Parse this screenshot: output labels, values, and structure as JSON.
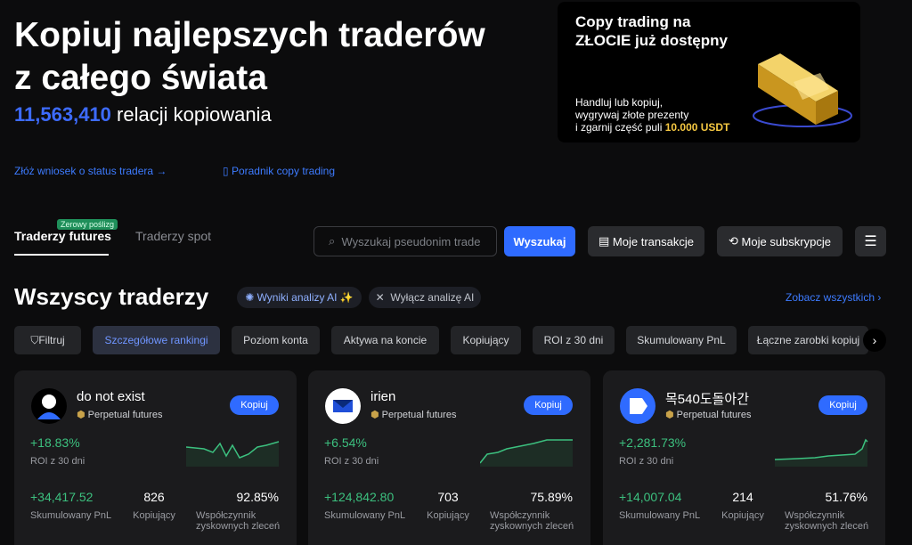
{
  "hero": {
    "title_line1": "Kopiuj najlepszych traderów",
    "title_line2": "z całego świata",
    "count": "11,563,410",
    "count_label": "relacji kopiowania"
  },
  "links": [
    "Złóż wniosek o status tradera",
    "Poradnik copy trading"
  ],
  "banner": {
    "title_line1": "Copy trading na",
    "title_line2": "ZŁOCIE już dostępny",
    "text_line1": "Handluj lub kopiuj,",
    "text_line2": "wygrywaj złote prezenty",
    "text_line3": "i zgarnij część puli",
    "highlight": "10.000 USDT"
  },
  "tabs": {
    "futures": "Traderzy futures",
    "badge": "Zerowy poślizg",
    "spot": "Traderzy spot"
  },
  "toolbar": {
    "search_placeholder": "Wyszukaj pseudonim trade",
    "search_button": "Wyszukaj",
    "my_trades": "Moje transakcje",
    "my_subscriptions": "Moje subskrypcje"
  },
  "section": {
    "title": "Wszyscy traderzy",
    "ai_results": "Wyniki analizy AI",
    "ai_off": "Wyłącz analizę AI",
    "see_all": "Zobacz wszystkich"
  },
  "filters": [
    "Filtruj",
    "Szczegółowe rankingi",
    "Poziom konta",
    "Aktywa na koncie",
    "Kopiujący",
    "ROI z 30 dni",
    "Skumulowany PnL",
    "Łączne zarobki kopiuj"
  ],
  "card_labels": {
    "market": "Perpetual futures",
    "copy": "Kopiuj",
    "roi": "ROI z 30 dni",
    "pnl": "Skumulowany PnL",
    "copiers": "Kopiujący",
    "win_rate_line1": "Współczynnik",
    "win_rate_line2": "zyskownych zleceń"
  },
  "traders": [
    {
      "name": "do not exist",
      "roi": "+18.83%",
      "pnl": "+34,417.52",
      "copiers": "826",
      "win_rate": "92.85%"
    },
    {
      "name": "irien",
      "roi": "+6.54%",
      "pnl": "+124,842.80",
      "copiers": "703",
      "win_rate": "75.89%"
    },
    {
      "name": "목540도돌아간",
      "roi": "+2,281.73%",
      "pnl": "+14,007.04",
      "copiers": "214",
      "win_rate": "51.76%"
    }
  ]
}
